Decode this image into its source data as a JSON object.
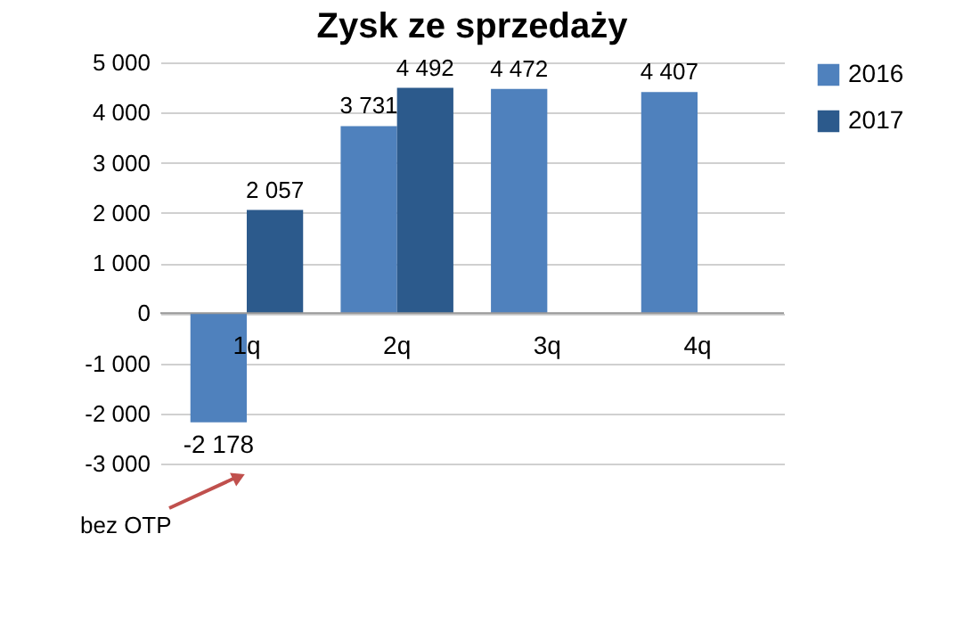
{
  "chart_data": {
    "type": "bar",
    "title": "Zysk ze sprzedaży",
    "categories": [
      "1q",
      "2q",
      "3q",
      "4q"
    ],
    "series": [
      {
        "name": "2016",
        "color": "#4f81bd",
        "values": [
          -2178,
          3731,
          4472,
          4407
        ],
        "value_labels": [
          "-2 178",
          "3 731",
          "4 472",
          "4 407"
        ]
      },
      {
        "name": "2017",
        "color": "#2c5a8c",
        "values": [
          2057,
          4492,
          null,
          null
        ],
        "value_labels": [
          "2 057",
          "4 492",
          null,
          null
        ]
      }
    ],
    "ylim": [
      -3000,
      5000
    ],
    "yticks": [
      {
        "value": -3000,
        "label": "-3 000"
      },
      {
        "value": -2000,
        "label": "-2 000"
      },
      {
        "value": -1000,
        "label": "-1 000"
      },
      0,
      {
        "value": 1000,
        "label": "1 000"
      },
      {
        "value": 2000,
        "label": "2 000"
      },
      {
        "value": 3000,
        "label": "3 000"
      },
      {
        "value": 4000,
        "label": "4 000"
      },
      {
        "value": 5000,
        "label": "5 000"
      }
    ],
    "grid": "y",
    "legend": "top right",
    "annotations": [
      "bez OTP"
    ]
  }
}
